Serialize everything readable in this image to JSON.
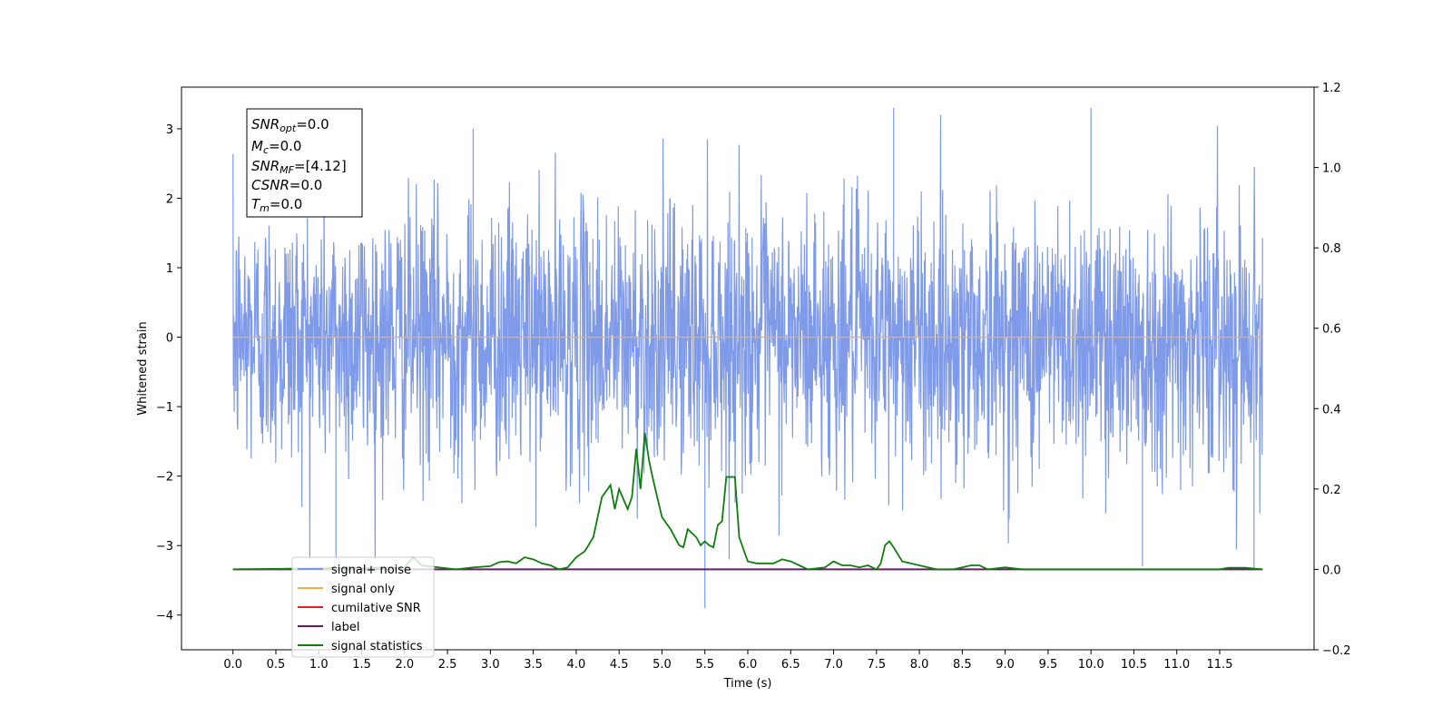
{
  "chart_data": {
    "type": "line",
    "title": "",
    "xlabel": "Time (s)",
    "ylabel": "Whitened strain",
    "y2label": "",
    "xlim": [
      -0.6,
      12.6
    ],
    "ylim": [
      -4.5,
      3.6
    ],
    "y2lim": [
      -0.2,
      1.2
    ],
    "xticks": [
      "0.0",
      "0.5",
      "1.0",
      "1.5",
      "2.0",
      "2.5",
      "3.0",
      "3.5",
      "4.0",
      "4.5",
      "5.0",
      "5.5",
      "6.0",
      "6.5",
      "7.0",
      "7.5",
      "8.0",
      "8.5",
      "9.0",
      "9.5",
      "10.0",
      "10.5",
      "11.0",
      "11.5"
    ],
    "yticks": [
      "3",
      "2",
      "1",
      "0",
      "−1",
      "−2",
      "−3",
      "−4"
    ],
    "y2ticks": [
      "1.2",
      "1.0",
      "0.8",
      "0.6",
      "0.4",
      "0.2",
      "0.0",
      "−0.2"
    ],
    "grid": false,
    "legend_position": "bottom-left",
    "series": [
      {
        "name": "signal+ noise",
        "color": "#7895e8",
        "axis": "left",
        "style": "dense noisy trace, roughly symmetric about 0, envelope about ±2.2 to ±3.3",
        "x_range": [
          0.0,
          12.0
        ],
        "notable_spikes": [
          [
            1.2,
            -3.2
          ],
          [
            2.8,
            3.0
          ],
          [
            5.5,
            -3.9
          ],
          [
            7.7,
            3.3
          ],
          [
            10.0,
            3.3
          ],
          [
            10.6,
            -3.3
          ],
          [
            11.9,
            -3.35
          ]
        ]
      },
      {
        "name": "signal only",
        "color": "#f5b041",
        "axis": "left",
        "x": [
          0.0,
          12.0
        ],
        "y": [
          0.0,
          0.0
        ]
      },
      {
        "name": "cumilative SNR",
        "color": "#e8201e",
        "axis": "right",
        "x": [],
        "y": []
      },
      {
        "name": "label",
        "color": "#6a1a6a",
        "axis": "right",
        "x": [
          0.0,
          12.0
        ],
        "y": [
          0.0,
          0.0
        ]
      },
      {
        "name": "signal statistics",
        "color": "#0e7f0e",
        "axis": "right",
        "x": [
          0.0,
          2.0,
          2.1,
          2.2,
          2.4,
          2.6,
          2.8,
          3.0,
          3.1,
          3.2,
          3.3,
          3.4,
          3.5,
          3.6,
          3.7,
          3.8,
          3.9,
          4.0,
          4.1,
          4.2,
          4.3,
          4.4,
          4.45,
          4.5,
          4.6,
          4.65,
          4.7,
          4.75,
          4.8,
          4.85,
          4.9,
          5.0,
          5.1,
          5.2,
          5.25,
          5.3,
          5.4,
          5.45,
          5.5,
          5.55,
          5.6,
          5.65,
          5.7,
          5.75,
          5.8,
          5.85,
          5.9,
          6.0,
          6.1,
          6.3,
          6.4,
          6.5,
          6.6,
          6.7,
          6.9,
          7.0,
          7.1,
          7.2,
          7.3,
          7.4,
          7.5,
          7.55,
          7.6,
          7.65,
          7.7,
          7.8,
          7.9,
          8.0,
          8.2,
          8.4,
          8.6,
          8.7,
          8.8,
          9.0,
          9.2,
          9.5,
          10.0,
          11.0,
          11.5,
          11.6,
          11.8,
          12.0
        ],
        "y": [
          0.0,
          0.005,
          0.03,
          0.01,
          0.005,
          0.0,
          0.005,
          0.008,
          0.018,
          0.02,
          0.015,
          0.03,
          0.025,
          0.015,
          0.01,
          0.0,
          0.005,
          0.03,
          0.045,
          0.08,
          0.18,
          0.21,
          0.15,
          0.2,
          0.15,
          0.18,
          0.3,
          0.2,
          0.34,
          0.27,
          0.22,
          0.13,
          0.1,
          0.06,
          0.055,
          0.1,
          0.08,
          0.06,
          0.07,
          0.06,
          0.055,
          0.11,
          0.12,
          0.23,
          0.23,
          0.23,
          0.08,
          0.02,
          0.015,
          0.015,
          0.025,
          0.02,
          0.01,
          0.0,
          0.005,
          0.02,
          0.01,
          0.01,
          0.005,
          0.01,
          0.0,
          0.015,
          0.06,
          0.07,
          0.055,
          0.02,
          0.015,
          0.01,
          0.0,
          0.0,
          0.01,
          0.01,
          0.0,
          0.005,
          0.0,
          0.0,
          0.0,
          0.0,
          0.0,
          0.004,
          0.004,
          0.0
        ]
      }
    ],
    "annotation": {
      "lines": [
        {
          "symbol": "SNR",
          "sub": "opt",
          "value": "=0.0"
        },
        {
          "symbol": "M",
          "sub": "c",
          "value": "=0.0"
        },
        {
          "symbol": "SNR",
          "sub": "MF",
          "value": "=[4.12]"
        },
        {
          "symbol": "CSNR",
          "sub": "",
          "value": "=0.0"
        },
        {
          "symbol": "T",
          "sub": "m",
          "value": "=0.0"
        }
      ]
    }
  }
}
